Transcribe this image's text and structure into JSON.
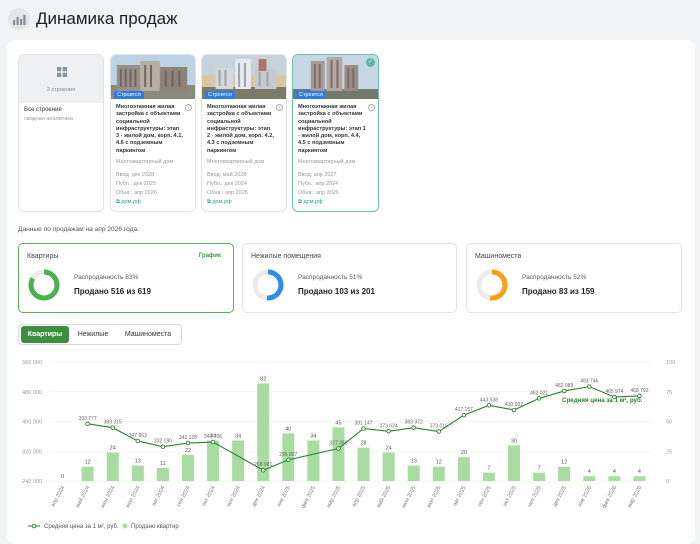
{
  "header": {
    "title": "Динамика продаж",
    "icon": "chart-icon"
  },
  "buildings": {
    "all": {
      "count_label": "3 строения",
      "title": "Все строения",
      "note": "сводная аналитика"
    },
    "items": [
      {
        "status": "Строится",
        "name": "Многоэтажная жилая застройка с объектами социальной инфраструктуры: этап 3 - жилой дом, корп. 4.1, 4.6 с подземным паркингом",
        "type": "Многоквартирный дом",
        "vvod": "Ввод: дек 2028",
        "publ": "Публ.: дек 2025",
        "obn": "Обнв.: апр 2026",
        "link": "дом.рф",
        "selected": false
      },
      {
        "status": "Строится",
        "name": "Многоэтажная жилая застройка с объектами социальной инфраструктуры: этап 2 - жилой дом, корп. 4.2, 4.3 с подземным паркингом",
        "type": "Многоквартирный дом",
        "vvod": "Ввод: май 2028",
        "publ": "Публ.: дек 2024",
        "obn": "Обнв.: апр 2026",
        "link": "дом.рф",
        "selected": false
      },
      {
        "status": "Строится",
        "name": "Многоэтажная жилая застройка с объектами социальной инфраструктуры: этап 1 - жилой дом, корп. 4.4, 4.5 с подземным паркингом",
        "type": "Многоквартирный дом",
        "vvod": "Ввод: апр 2027",
        "publ": "Публ.: апр 2024",
        "obn": "Обнв.: апр 2026",
        "link": "дом.рф",
        "selected": true
      }
    ]
  },
  "as_of": "Данные по продажам на апр 2026 года.",
  "stats": [
    {
      "title": "Квартиры",
      "link": "График",
      "pct_label": "Распроданность 83%",
      "pct": 0.83,
      "sold": "Продано 516 из 619",
      "color": "#4caf50",
      "active": true
    },
    {
      "title": "Нежилые помещения",
      "link": "",
      "pct_label": "Распроданность 51%",
      "pct": 0.51,
      "sold": "Продано 103 из 201",
      "color": "#2d8cf0",
      "active": false
    },
    {
      "title": "Машиноместа",
      "link": "",
      "pct_label": "Распроданность 52%",
      "pct": 0.52,
      "sold": "Продано 83 из 159",
      "color": "#f7a11a",
      "active": false
    }
  ],
  "tabs": [
    {
      "label": "Квартиры",
      "active": true
    },
    {
      "label": "Нежилые",
      "active": false
    },
    {
      "label": "Машиноместа",
      "active": false
    }
  ],
  "chart_data": {
    "type": "bar+line",
    "categories": [
      "апр 2024",
      "май 2024",
      "июн 2024",
      "июл 2024",
      "авг 2024",
      "сен 2024",
      "окт 2024",
      "ноя 2024",
      "дек 2024",
      "янв 2025",
      "фев 2025",
      "мар 2025",
      "апр 2025",
      "май 2025",
      "июн 2025",
      "июл 2025",
      "авг 2025",
      "сен 2025",
      "окт 2025",
      "ноя 2025",
      "дек 2025",
      "янв 2026",
      "фев 2026",
      "мар 2026"
    ],
    "series": [
      {
        "name": "Продано квартир",
        "type": "bar",
        "axis": "right",
        "color": "#a8dca0",
        "values": [
          0,
          12,
          24,
          13,
          11,
          22,
          34,
          34,
          82,
          40,
          34,
          45,
          28,
          24,
          13,
          12,
          20,
          7,
          30,
          7,
          12,
          4,
          4,
          4
        ],
        "labels": [
          "0",
          "12",
          "24",
          "13",
          "11",
          "22",
          "34",
          "34",
          "82",
          "40",
          "34",
          "45",
          "28",
          "24",
          "13",
          "12",
          "20",
          "7",
          "30",
          "7",
          "12",
          "4",
          "4",
          "4"
        ]
      },
      {
        "name": "Средняя цена за 1 м², руб.",
        "type": "line",
        "axis": "left",
        "color": "#2e7d32",
        "values": [
          null,
          393777,
          383315,
          347663,
          332190,
          342128,
          344706,
          null,
          268981,
          296827,
          null,
          327358,
          381147,
          373624,
          383372,
          373016,
          417157,
          443538,
          430932,
          462021,
          482089,
          493746,
          465974,
          468792
        ],
        "labels": [
          "",
          "393 777",
          "383 315",
          "347 663",
          "332 190",
          "342 128",
          "344 706",
          "",
          "268 981",
          "296 827",
          "",
          "327 358",
          "381 147",
          "373 624",
          "383 372",
          "373 016",
          "417 157",
          "443 538",
          "430 932",
          "462 021",
          "482 089",
          "493 746",
          "465 974",
          "468 792"
        ]
      }
    ],
    "y_left": {
      "ticks": [
        "240 000",
        "320 000",
        "400 000",
        "480 000",
        "560 000"
      ],
      "range": [
        240000,
        560000
      ]
    },
    "y_right": {
      "ticks": [
        "0",
        "25",
        "50",
        "75",
        "100"
      ],
      "range": [
        0,
        100
      ]
    },
    "line_label": "Средняя цена за 1 м², руб.",
    "legend": [
      "Средняя цена за 1 м², руб.",
      "Продано квартир"
    ],
    "grid": true
  }
}
